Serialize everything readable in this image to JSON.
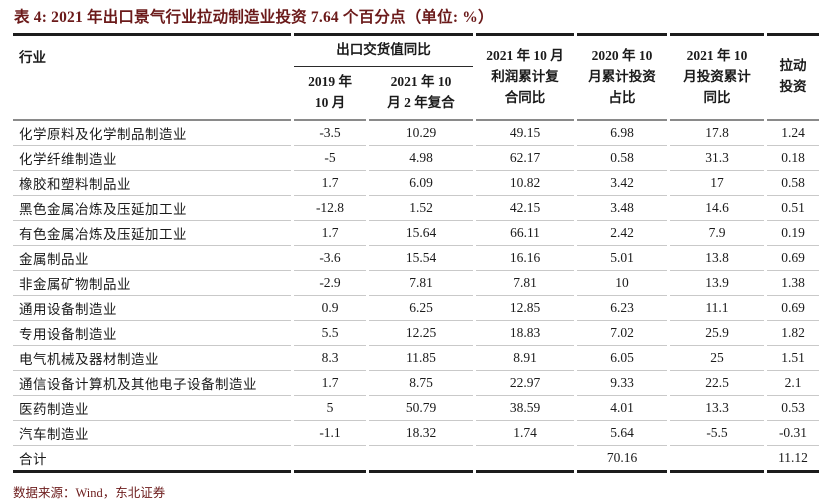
{
  "title": "表 4: 2021 年出口景气行业拉动制造业投资 7.64 个百分点（单位: %）",
  "table": {
    "industry_header": "行业",
    "group_header": "出口交货值同比",
    "sub_headers": {
      "col_2019": "2019 年\n10 月",
      "col_2021_cagr": "2021 年 10\n月 2 年复合"
    },
    "headers": {
      "profit": "2021 年 10 月\n利润累计复\n合同比",
      "inv_share": "2020 年 10\n月累计投资\n占比",
      "inv_yoy": "2021 年 10\n月投资累计\n同比",
      "pull": "拉动\n投资"
    },
    "rows": [
      {
        "industry": "化学原料及化学制品制造业",
        "values": [
          "-3.5",
          "10.29",
          "49.15",
          "6.98",
          "17.8",
          "1.24"
        ]
      },
      {
        "industry": "化学纤维制造业",
        "values": [
          "-5",
          "4.98",
          "62.17",
          "0.58",
          "31.3",
          "0.18"
        ]
      },
      {
        "industry": "橡胶和塑料制品业",
        "values": [
          "1.7",
          "6.09",
          "10.82",
          "3.42",
          "17",
          "0.58"
        ]
      },
      {
        "industry": "黑色金属冶炼及压延加工业",
        "values": [
          "-12.8",
          "1.52",
          "42.15",
          "3.48",
          "14.6",
          "0.51"
        ]
      },
      {
        "industry": "有色金属冶炼及压延加工业",
        "values": [
          "1.7",
          "15.64",
          "66.11",
          "2.42",
          "7.9",
          "0.19"
        ]
      },
      {
        "industry": "金属制品业",
        "values": [
          "-3.6",
          "15.54",
          "16.16",
          "5.01",
          "13.8",
          "0.69"
        ]
      },
      {
        "industry": "非金属矿物制品业",
        "values": [
          "-2.9",
          "7.81",
          "7.81",
          "10",
          "13.9",
          "1.38"
        ]
      },
      {
        "industry": "通用设备制造业",
        "values": [
          "0.9",
          "6.25",
          "12.85",
          "6.23",
          "11.1",
          "0.69"
        ]
      },
      {
        "industry": "专用设备制造业",
        "values": [
          "5.5",
          "12.25",
          "18.83",
          "7.02",
          "25.9",
          "1.82"
        ]
      },
      {
        "industry": "电气机械及器材制造业",
        "values": [
          "8.3",
          "11.85",
          "8.91",
          "6.05",
          "25",
          "1.51"
        ]
      },
      {
        "industry": "通信设备计算机及其他电子设备制造业",
        "values": [
          "1.7",
          "8.75",
          "22.97",
          "9.33",
          "22.5",
          "2.1"
        ]
      },
      {
        "industry": "医药制造业",
        "values": [
          "5",
          "50.79",
          "38.59",
          "4.01",
          "13.3",
          "0.53"
        ]
      },
      {
        "industry": "汽车制造业",
        "values": [
          "-1.1",
          "18.32",
          "1.74",
          "5.64",
          "-5.5",
          "-0.31"
        ]
      },
      {
        "industry": "合计",
        "values": [
          "",
          "",
          "",
          "70.16",
          "",
          "11.12"
        ],
        "is_total": true
      }
    ]
  },
  "source_note": "数据来源：Wind，东北证券",
  "colors": {
    "title_text": "#6b1a1a",
    "source_text": "#6b1a1a",
    "body_text": "#1a1a1a",
    "thick_rule": "#1c1c1c",
    "header_rule": "#8a8a8a",
    "row_rule": "#c9c9c9",
    "background": "#ffffff"
  }
}
